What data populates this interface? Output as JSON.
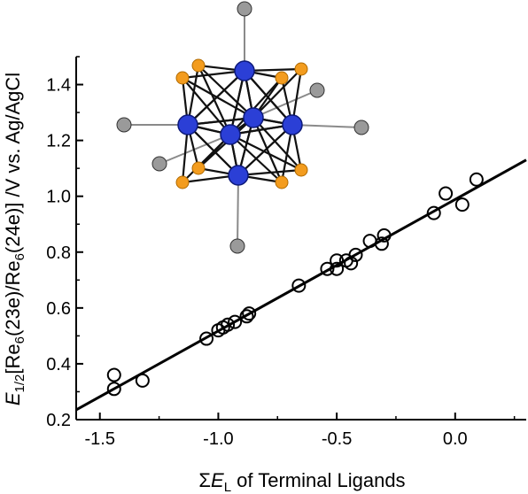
{
  "chart_data": {
    "type": "scatter",
    "xlabel_parts": {
      "sigma": "Σ",
      "e": "E",
      "sub": "L",
      "rest": " of Terminal Ligands"
    },
    "ylabel_parts": {
      "e": "E",
      "sub1": "1/2",
      "p1": "[Re",
      "sub2": "6",
      "p2": "(23e)/Re",
      "sub3": "6",
      "p3": "(24e)] /V vs. Ag/AgCl"
    },
    "xlim": [
      -1.6,
      0.3
    ],
    "ylim": [
      0.2,
      1.5
    ],
    "xticks": [
      -1.5,
      -1.0,
      -0.5,
      0.0
    ],
    "xtick_labels": [
      "-1.5",
      "-1.0",
      "-0.5",
      "0.0"
    ],
    "yticks": [
      0.2,
      0.4,
      0.6,
      0.8,
      1.0,
      1.2,
      1.4
    ],
    "ytick_labels": [
      "0.2",
      "0.4",
      "0.6",
      "0.8",
      "1.0",
      "1.2",
      "1.4"
    ],
    "points": [
      {
        "x": -1.44,
        "y": 0.36
      },
      {
        "x": -1.44,
        "y": 0.31
      },
      {
        "x": -1.32,
        "y": 0.34
      },
      {
        "x": -1.05,
        "y": 0.49
      },
      {
        "x": -1.0,
        "y": 0.52
      },
      {
        "x": -0.98,
        "y": 0.53
      },
      {
        "x": -0.96,
        "y": 0.54
      },
      {
        "x": -0.93,
        "y": 0.55
      },
      {
        "x": -0.88,
        "y": 0.57
      },
      {
        "x": -0.87,
        "y": 0.58
      },
      {
        "x": -0.66,
        "y": 0.68
      },
      {
        "x": -0.54,
        "y": 0.74
      },
      {
        "x": -0.5,
        "y": 0.74
      },
      {
        "x": -0.5,
        "y": 0.77
      },
      {
        "x": -0.46,
        "y": 0.77
      },
      {
        "x": -0.44,
        "y": 0.76
      },
      {
        "x": -0.42,
        "y": 0.79
      },
      {
        "x": -0.36,
        "y": 0.84
      },
      {
        "x": -0.31,
        "y": 0.83
      },
      {
        "x": -0.3,
        "y": 0.86
      },
      {
        "x": -0.09,
        "y": 0.94
      },
      {
        "x": -0.04,
        "y": 1.01
      },
      {
        "x": 0.03,
        "y": 0.97
      },
      {
        "x": 0.09,
        "y": 1.06
      }
    ],
    "fit_line": {
      "x": [
        -1.6,
        0.3
      ],
      "y": [
        0.235,
        1.13
      ]
    },
    "marker": "open-circle",
    "colors": {
      "marker": "#000000",
      "line": "#000000"
    },
    "inset": "Re6 cluster structure (blue Re atoms, orange and grey ligand atoms)",
    "inset_colors": {
      "re": "#2b3fd6",
      "face_ligand": "#f39c1e",
      "terminal": "#9a9a9a",
      "bond": "#111111"
    }
  }
}
